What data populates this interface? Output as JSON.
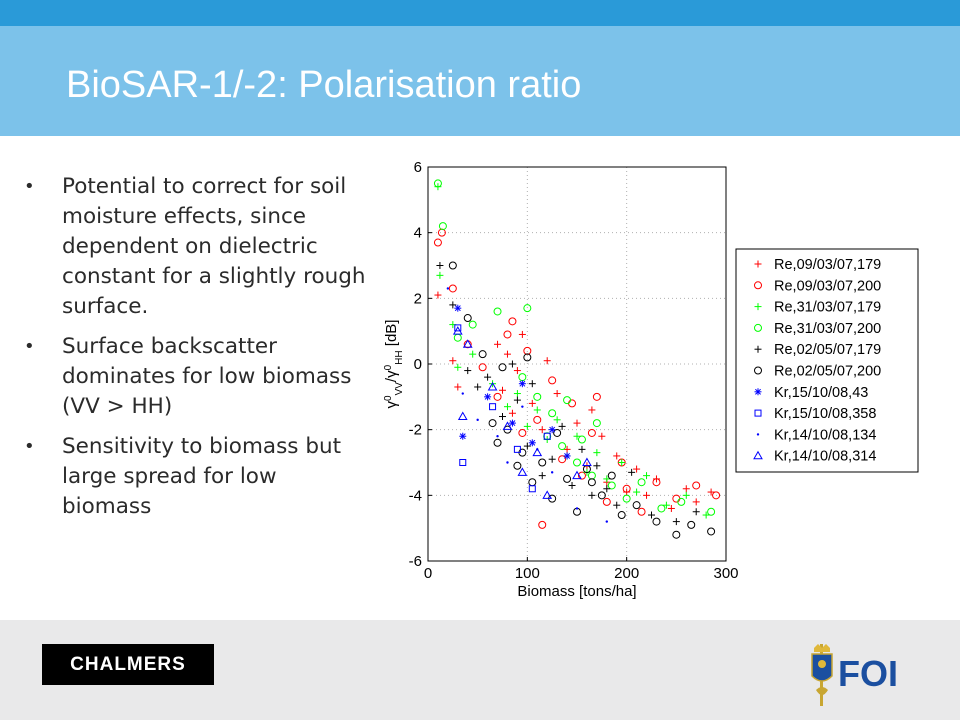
{
  "slide": {
    "title": "BioSAR-1/-2: Polarisation ratio",
    "bullets": [
      "Potential to correct for soil moisture effects, since dependent on dielectric constant for a slightly rough surface.",
      "Surface backscatter dominates for low biomass (VV > HH)",
      "Sensitivity to biomass but large spread for low biomass"
    ],
    "bullet_glyph": "•"
  },
  "logos": {
    "chalmers": "CHALMERS",
    "foi": "FOI"
  },
  "colors": {
    "top_bar": "#2a9ad8",
    "title_bar": "#7cc2ea",
    "footer": "#e9e9ea",
    "red": "#ff0000",
    "green": "#00ff00",
    "black": "#000000",
    "blue": "#0000ff"
  },
  "chart_data": {
    "type": "scatter",
    "xlabel": "Biomass [tons/ha]",
    "ylabel": "γ⁰VV/γ⁰HH [dB]",
    "xlim": [
      0,
      300
    ],
    "ylim": [
      -6,
      6
    ],
    "xticks": [
      "0",
      "100",
      "200",
      "300"
    ],
    "yticks": [
      "-6",
      "-4",
      "-2",
      "0",
      "2",
      "4",
      "6"
    ],
    "grid": true,
    "legend_position": "right",
    "series": [
      {
        "name": "Re,09/03/07,179",
        "color": "#ff0000",
        "marker": "plus",
        "points": [
          [
            10,
            2.1
          ],
          [
            25,
            0.1
          ],
          [
            30,
            -0.7
          ],
          [
            70,
            0.6
          ],
          [
            75,
            -0.8
          ],
          [
            80,
            0.3
          ],
          [
            85,
            -1.5
          ],
          [
            90,
            -0.2
          ],
          [
            95,
            0.9
          ],
          [
            105,
            -1.2
          ],
          [
            115,
            -2.0
          ],
          [
            120,
            0.1
          ],
          [
            130,
            -0.9
          ],
          [
            140,
            -2.6
          ],
          [
            150,
            -1.8
          ],
          [
            160,
            -3.1
          ],
          [
            165,
            -1.4
          ],
          [
            175,
            -2.2
          ],
          [
            180,
            -3.6
          ],
          [
            190,
            -2.8
          ],
          [
            200,
            -3.9
          ],
          [
            210,
            -3.2
          ],
          [
            220,
            -4.0
          ],
          [
            230,
            -3.5
          ],
          [
            245,
            -4.4
          ],
          [
            260,
            -3.8
          ],
          [
            270,
            -4.2
          ],
          [
            285,
            -3.9
          ]
        ]
      },
      {
        "name": "Re,09/03/07,200",
        "color": "#ff0000",
        "marker": "circle",
        "points": [
          [
            10,
            3.7
          ],
          [
            14,
            4.0
          ],
          [
            25,
            2.3
          ],
          [
            40,
            0.6
          ],
          [
            55,
            -0.1
          ],
          [
            70,
            -1.0
          ],
          [
            80,
            0.9
          ],
          [
            85,
            1.3
          ],
          [
            95,
            -2.1
          ],
          [
            100,
            0.4
          ],
          [
            110,
            -1.7
          ],
          [
            115,
            -4.9
          ],
          [
            125,
            -0.5
          ],
          [
            135,
            -2.9
          ],
          [
            145,
            -1.2
          ],
          [
            155,
            -3.4
          ],
          [
            165,
            -2.1
          ],
          [
            170,
            -1.0
          ],
          [
            180,
            -4.2
          ],
          [
            195,
            -3.0
          ],
          [
            200,
            -3.8
          ],
          [
            215,
            -4.5
          ],
          [
            230,
            -3.6
          ],
          [
            250,
            -4.1
          ],
          [
            270,
            -3.7
          ],
          [
            290,
            -4.0
          ]
        ]
      },
      {
        "name": "Re,31/03/07,179",
        "color": "#00ff00",
        "marker": "plus",
        "points": [
          [
            10,
            5.4
          ],
          [
            12,
            2.7
          ],
          [
            25,
            1.2
          ],
          [
            30,
            -0.1
          ],
          [
            45,
            0.3
          ],
          [
            65,
            -0.6
          ],
          [
            80,
            -1.3
          ],
          [
            90,
            -0.9
          ],
          [
            100,
            -1.9
          ],
          [
            110,
            -1.4
          ],
          [
            120,
            -2.3
          ],
          [
            130,
            -1.7
          ],
          [
            140,
            -2.8
          ],
          [
            150,
            -2.2
          ],
          [
            160,
            -3.3
          ],
          [
            170,
            -2.7
          ],
          [
            180,
            -3.5
          ],
          [
            195,
            -3.0
          ],
          [
            210,
            -3.9
          ],
          [
            220,
            -3.4
          ],
          [
            240,
            -4.3
          ],
          [
            260,
            -4.0
          ],
          [
            280,
            -4.6
          ]
        ]
      },
      {
        "name": "Re,31/03/07,200",
        "color": "#00ff00",
        "marker": "circle",
        "points": [
          [
            10,
            5.5
          ],
          [
            15,
            4.2
          ],
          [
            30,
            0.8
          ],
          [
            45,
            1.2
          ],
          [
            70,
            1.6
          ],
          [
            100,
            1.7
          ],
          [
            95,
            -0.4
          ],
          [
            110,
            -1.0
          ],
          [
            120,
            -2.2
          ],
          [
            125,
            -1.5
          ],
          [
            135,
            -2.5
          ],
          [
            140,
            -1.1
          ],
          [
            150,
            -3.0
          ],
          [
            155,
            -2.3
          ],
          [
            165,
            -3.4
          ],
          [
            170,
            -1.8
          ],
          [
            185,
            -3.7
          ],
          [
            200,
            -4.1
          ],
          [
            215,
            -3.6
          ],
          [
            235,
            -4.4
          ],
          [
            255,
            -4.2
          ],
          [
            285,
            -4.5
          ]
        ]
      },
      {
        "name": "Re,02/05/07,179",
        "color": "#000000",
        "marker": "plus",
        "points": [
          [
            12,
            3.0
          ],
          [
            25,
            1.8
          ],
          [
            40,
            -0.2
          ],
          [
            50,
            -0.7
          ],
          [
            60,
            -0.4
          ],
          [
            75,
            -1.6
          ],
          [
            85,
            0.0
          ],
          [
            90,
            -1.1
          ],
          [
            100,
            -2.5
          ],
          [
            105,
            -0.6
          ],
          [
            115,
            -3.4
          ],
          [
            125,
            -2.9
          ],
          [
            135,
            -1.9
          ],
          [
            145,
            -3.7
          ],
          [
            155,
            -2.6
          ],
          [
            165,
            -4.0
          ],
          [
            170,
            -3.1
          ],
          [
            180,
            -3.8
          ],
          [
            190,
            -4.3
          ],
          [
            205,
            -3.3
          ],
          [
            225,
            -4.6
          ],
          [
            250,
            -4.8
          ],
          [
            270,
            -4.5
          ]
        ]
      },
      {
        "name": "Re,02/05/07,200",
        "color": "#000000",
        "marker": "circle",
        "points": [
          [
            25,
            3.0
          ],
          [
            40,
            1.4
          ],
          [
            55,
            0.3
          ],
          [
            65,
            -1.8
          ],
          [
            70,
            -2.4
          ],
          [
            75,
            -0.1
          ],
          [
            80,
            -2.0
          ],
          [
            90,
            -3.1
          ],
          [
            95,
            -2.7
          ],
          [
            100,
            0.2
          ],
          [
            105,
            -3.6
          ],
          [
            115,
            -3.0
          ],
          [
            125,
            -4.1
          ],
          [
            130,
            -2.1
          ],
          [
            140,
            -3.5
          ],
          [
            150,
            -4.5
          ],
          [
            160,
            -3.2
          ],
          [
            165,
            -3.6
          ],
          [
            175,
            -4.0
          ],
          [
            185,
            -3.4
          ],
          [
            195,
            -4.6
          ],
          [
            210,
            -4.3
          ],
          [
            230,
            -4.8
          ],
          [
            250,
            -5.2
          ],
          [
            265,
            -4.9
          ],
          [
            285,
            -5.1
          ]
        ]
      },
      {
        "name": "Kr,15/10/08,43",
        "color": "#0000ff",
        "marker": "star",
        "points": [
          [
            30,
            1.7
          ],
          [
            35,
            -2.2
          ],
          [
            60,
            -1.0
          ],
          [
            85,
            -1.8
          ],
          [
            95,
            -0.6
          ],
          [
            105,
            -2.4
          ],
          [
            125,
            -2.0
          ],
          [
            140,
            -2.8
          ]
        ]
      },
      {
        "name": "Kr,15/10/08,358",
        "color": "#0000ff",
        "marker": "square",
        "points": [
          [
            30,
            1.1
          ],
          [
            35,
            -3.0
          ],
          [
            65,
            -1.3
          ],
          [
            90,
            -2.6
          ],
          [
            105,
            -3.8
          ],
          [
            120,
            -2.2
          ]
        ]
      },
      {
        "name": "Kr,14/10/08,134",
        "color": "#0000ff",
        "marker": "dot",
        "points": [
          [
            20,
            2.3
          ],
          [
            35,
            -0.9
          ],
          [
            50,
            -1.7
          ],
          [
            70,
            -2.2
          ],
          [
            80,
            -3.0
          ],
          [
            95,
            -1.3
          ],
          [
            110,
            -2.6
          ],
          [
            125,
            -3.3
          ],
          [
            150,
            -4.4
          ],
          [
            180,
            -4.8
          ]
        ]
      },
      {
        "name": "Kr,14/10/08,314",
        "color": "#0000ff",
        "marker": "triangle",
        "points": [
          [
            30,
            1.0
          ],
          [
            40,
            0.6
          ],
          [
            35,
            -1.6
          ],
          [
            65,
            -0.7
          ],
          [
            80,
            -1.9
          ],
          [
            95,
            -3.3
          ],
          [
            110,
            -2.7
          ],
          [
            120,
            -4.0
          ],
          [
            150,
            -3.4
          ],
          [
            160,
            -3.0
          ]
        ]
      }
    ]
  }
}
